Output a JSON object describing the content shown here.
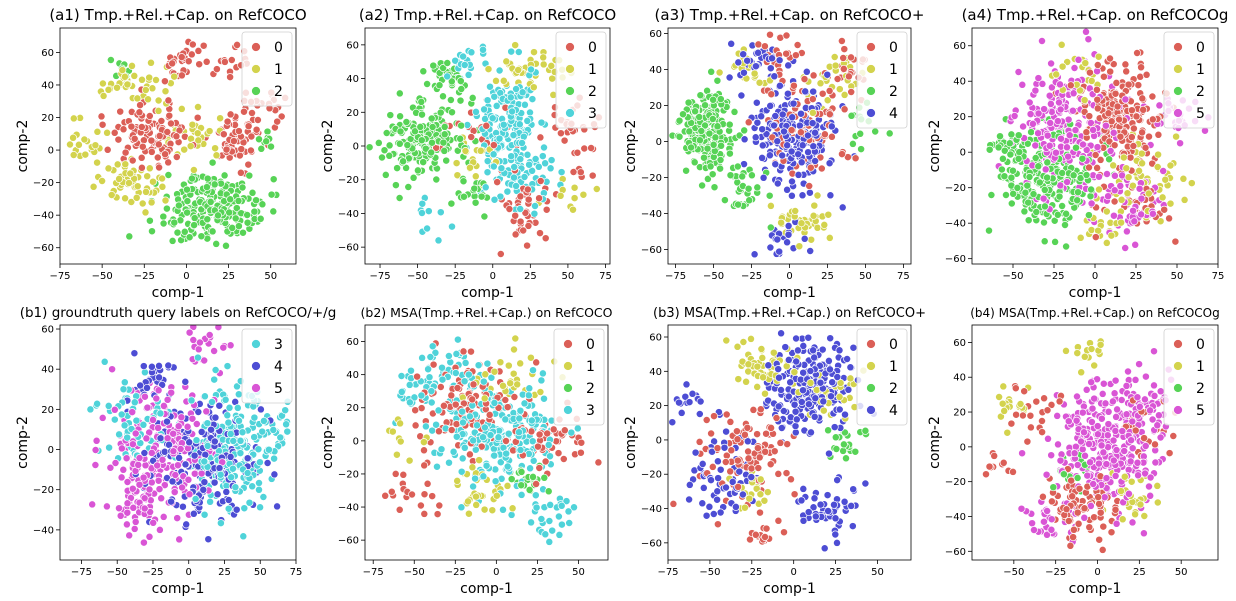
{
  "figure": {
    "panels": 8
  },
  "chart_data": [
    {
      "id": "a1",
      "type": "scatter",
      "title": "(a1) Tmp.+Rel.+Cap. on RefCOCO",
      "xlabel": "comp-1",
      "ylabel": "comp-2",
      "xlim": [
        -75,
        65
      ],
      "ylim": [
        -70,
        75
      ],
      "xticks": [
        -75,
        -50,
        -25,
        0,
        25,
        50
      ],
      "yticks": [
        -60,
        -40,
        -20,
        0,
        20,
        40,
        60
      ],
      "legend_loc": "upper right",
      "series": [
        {
          "name": "0",
          "color": "#db5f57",
          "clusters": [
            [
              -20,
              10,
              16,
              12,
              110
            ],
            [
              30,
              5,
              12,
              10,
              50
            ],
            [
              -5,
              55,
              8,
              10,
              25
            ],
            [
              25,
              55,
              10,
              8,
              20
            ],
            [
              45,
              25,
              12,
              10,
              30
            ]
          ]
        },
        {
          "name": "1",
          "color": "#d3d34d",
          "clusters": [
            [
              -35,
              -20,
              15,
              10,
              55
            ],
            [
              -30,
              40,
              15,
              8,
              40
            ],
            [
              -60,
              5,
              10,
              10,
              20
            ],
            [
              5,
              10,
              10,
              10,
              30
            ]
          ]
        },
        {
          "name": "2",
          "color": "#57d356",
          "clusters": [
            [
              15,
              -35,
              20,
              13,
              230
            ],
            [
              50,
              5,
              5,
              5,
              8
            ],
            [
              -40,
              50,
              5,
              5,
              8
            ]
          ]
        }
      ]
    },
    {
      "id": "a2",
      "type": "scatter",
      "title": "(a2) Tmp.+Rel.+Cap. on RefCOCO",
      "xlabel": "comp-1",
      "ylabel": "comp-2",
      "xlim": [
        -85,
        78
      ],
      "ylim": [
        -70,
        70
      ],
      "xticks": [
        -75,
        -50,
        -25,
        0,
        25,
        50,
        75
      ],
      "yticks": [
        -60,
        -40,
        -20,
        0,
        20,
        40,
        60
      ],
      "legend_loc": "upper right",
      "series": [
        {
          "name": "0",
          "color": "#db5f57",
          "clusters": [
            [
              20,
              -40,
              15,
              15,
              45
            ],
            [
              45,
              10,
              15,
              10,
              25
            ],
            [
              -10,
              10,
              15,
              12,
              20
            ],
            [
              60,
              -10,
              8,
              8,
              10
            ]
          ]
        },
        {
          "name": "1",
          "color": "#d3d34d",
          "clusters": [
            [
              25,
              45,
              15,
              10,
              40
            ],
            [
              -15,
              -10,
              12,
              10,
              20
            ],
            [
              50,
              -30,
              10,
              8,
              10
            ]
          ]
        },
        {
          "name": "2",
          "color": "#57d356",
          "clusters": [
            [
              -45,
              5,
              18,
              15,
              200
            ],
            [
              -30,
              40,
              10,
              10,
              30
            ],
            [
              -15,
              -30,
              10,
              10,
              20
            ]
          ]
        },
        {
          "name": "3",
          "color": "#4fd3d9",
          "clusters": [
            [
              10,
              10,
              15,
              20,
              190
            ],
            [
              -20,
              50,
              10,
              8,
              20
            ],
            [
              20,
              -20,
              15,
              10,
              40
            ],
            [
              -40,
              -40,
              8,
              8,
              10
            ]
          ]
        }
      ]
    },
    {
      "id": "a3",
      "type": "scatter",
      "title": "(a3) Tmp.+Rel.+Cap. on RefCOCO+",
      "xlabel": "comp-1",
      "ylabel": "comp-2",
      "xlim": [
        -80,
        80
      ],
      "ylim": [
        -68,
        63
      ],
      "xticks": [
        -75,
        -50,
        -25,
        0,
        25,
        50,
        75
      ],
      "yticks": [
        -60,
        -40,
        -20,
        0,
        20,
        40,
        60
      ],
      "legend_loc": "upper right",
      "series": [
        {
          "name": "0",
          "color": "#db5f57",
          "clusters": [
            [
              10,
              10,
              20,
              20,
              90
            ],
            [
              -10,
              50,
              10,
              8,
              20
            ],
            [
              40,
              40,
              10,
              10,
              20
            ]
          ]
        },
        {
          "name": "1",
          "color": "#d3d34d",
          "clusters": [
            [
              10,
              -45,
              15,
              8,
              40
            ],
            [
              30,
              35,
              12,
              10,
              30
            ],
            [
              -30,
              40,
              10,
              8,
              20
            ]
          ]
        },
        {
          "name": "2",
          "color": "#57d356",
          "clusters": [
            [
              -55,
              5,
              12,
              15,
              220
            ],
            [
              -30,
              -30,
              10,
              10,
              30
            ],
            [
              50,
              10,
              10,
              10,
              15
            ]
          ]
        },
        {
          "name": "4",
          "color": "#4d4dd4",
          "clusters": [
            [
              5,
              0,
              18,
              20,
              200
            ],
            [
              -20,
              45,
              12,
              8,
              40
            ],
            [
              -5,
              -55,
              8,
              6,
              20
            ]
          ]
        }
      ]
    },
    {
      "id": "a4",
      "type": "scatter",
      "title": "(a4) Tmp.+Rel.+Cap. on RefCOCOg",
      "xlabel": "comp-1",
      "ylabel": "comp-2",
      "xlim": [
        -75,
        75
      ],
      "ylim": [
        -63,
        70
      ],
      "xticks": [
        -50,
        -25,
        0,
        25,
        50,
        75
      ],
      "yticks": [
        -60,
        -40,
        -20,
        0,
        20,
        40,
        60
      ],
      "legend_loc": "upper right",
      "series": [
        {
          "name": "0",
          "color": "#db5f57",
          "clusters": [
            [
              15,
              20,
              18,
              20,
              200
            ],
            [
              30,
              -30,
              15,
              12,
              30
            ]
          ]
        },
        {
          "name": "1",
          "color": "#d3d34d",
          "clusters": [
            [
              35,
              -10,
              15,
              15,
              50
            ],
            [
              -10,
              45,
              10,
              10,
              20
            ],
            [
              5,
              -40,
              10,
              8,
              20
            ]
          ]
        },
        {
          "name": "2",
          "color": "#57d356",
          "clusters": [
            [
              -30,
              -15,
              20,
              18,
              230
            ],
            [
              -55,
              5,
              8,
              8,
              20
            ]
          ]
        },
        {
          "name": "5",
          "color": "#d955d5",
          "clusters": [
            [
              -20,
              15,
              20,
              25,
              230
            ],
            [
              20,
              -30,
              15,
              15,
              60
            ],
            [
              50,
              20,
              12,
              10,
              25
            ]
          ]
        }
      ]
    },
    {
      "id": "b1",
      "type": "scatter",
      "title": "(b1) groundtruth query labels on RefCOCO/+/g",
      "xlabel": "comp-1",
      "ylabel": "comp-2",
      "xlim": [
        -90,
        75
      ],
      "ylim": [
        -55,
        62
      ],
      "xticks": [
        -75,
        -50,
        -25,
        0,
        25,
        50,
        75
      ],
      "yticks": [
        -40,
        -20,
        0,
        20,
        40,
        60
      ],
      "legend_loc": "upper right",
      "series": [
        {
          "name": "3",
          "color": "#4fd3d9",
          "clusters": [
            [
              30,
              0,
              22,
              20,
              230
            ],
            [
              -40,
              10,
              15,
              15,
              60
            ],
            [
              60,
              10,
              8,
              8,
              20
            ]
          ]
        },
        {
          "name": "4",
          "color": "#4d4dd4",
          "clusters": [
            [
              10,
              -5,
              25,
              18,
              220
            ],
            [
              -25,
              35,
              10,
              10,
              30
            ]
          ]
        },
        {
          "name": "5",
          "color": "#d955d5",
          "clusters": [
            [
              -20,
              0,
              25,
              20,
              230
            ],
            [
              -35,
              -30,
              12,
              10,
              40
            ],
            [
              10,
              50,
              10,
              8,
              20
            ]
          ]
        }
      ]
    },
    {
      "id": "b2",
      "type": "scatter",
      "title": "(b2) MSA(Tmp.+Rel.+Cap.) on RefCOCO",
      "xlabel": "comp-1",
      "ylabel": "comp-2",
      "xlim": [
        -80,
        68
      ],
      "ylim": [
        -72,
        70
      ],
      "xticks": [
        -75,
        -50,
        -25,
        0,
        25,
        50
      ],
      "yticks": [
        -60,
        -40,
        -20,
        0,
        20,
        40,
        60
      ],
      "legend_loc": "upper right",
      "series": [
        {
          "name": "0",
          "color": "#db5f57",
          "clusters": [
            [
              -20,
              20,
              20,
              18,
              120
            ],
            [
              30,
              0,
              15,
              15,
              50
            ],
            [
              -50,
              -30,
              10,
              10,
              20
            ]
          ]
        },
        {
          "name": "1",
          "color": "#d3d34d",
          "clusters": [
            [
              10,
              40,
              15,
              10,
              30
            ],
            [
              -10,
              -30,
              12,
              10,
              30
            ],
            [
              -60,
              0,
              8,
              8,
              10
            ]
          ]
        },
        {
          "name": "2",
          "color": "#57d356",
          "clusters": [
            [
              20,
              -25,
              8,
              6,
              25
            ]
          ]
        },
        {
          "name": "3",
          "color": "#4fd3d9",
          "clusters": [
            [
              0,
              5,
              25,
              20,
              260
            ],
            [
              -30,
              45,
              15,
              10,
              40
            ],
            [
              30,
              -45,
              12,
              10,
              30
            ],
            [
              -50,
              30,
              8,
              8,
              20
            ]
          ]
        }
      ]
    },
    {
      "id": "b3",
      "type": "scatter",
      "title": "(b3) MSA(Tmp.+Rel.+Cap.) on RefCOCO+",
      "xlabel": "comp-1",
      "ylabel": "comp-2",
      "xlim": [
        -75,
        70
      ],
      "ylim": [
        -70,
        67
      ],
      "xticks": [
        -75,
        -50,
        -25,
        0,
        25,
        50
      ],
      "yticks": [
        -60,
        -40,
        -20,
        0,
        20,
        40,
        60
      ],
      "legend_loc": "upper right",
      "series": [
        {
          "name": "0",
          "color": "#db5f57",
          "clusters": [
            [
              -30,
              -10,
              20,
              20,
              100
            ],
            [
              -20,
              -55,
              8,
              6,
              15
            ]
          ]
        },
        {
          "name": "1",
          "color": "#d3d34d",
          "clusters": [
            [
              -20,
              45,
              15,
              10,
              50
            ],
            [
              20,
              25,
              12,
              10,
              30
            ],
            [
              -25,
              -30,
              10,
              8,
              20
            ]
          ]
        },
        {
          "name": "2",
          "color": "#57d356",
          "clusters": [
            [
              30,
              0,
              8,
              5,
              20
            ]
          ]
        },
        {
          "name": "4",
          "color": "#4d4dd4",
          "clusters": [
            [
              10,
              30,
              18,
              18,
              230
            ],
            [
              -45,
              -20,
              15,
              15,
              60
            ],
            [
              20,
              -40,
              15,
              12,
              50
            ],
            [
              -60,
              20,
              8,
              8,
              15
            ]
          ]
        }
      ]
    },
    {
      "id": "b4",
      "type": "scatter",
      "title": "(b4) MSA(Tmp.+Rel.+Cap.) on RefCOCOg",
      "xlabel": "comp-1",
      "ylabel": "comp-2",
      "xlim": [
        -75,
        72
      ],
      "ylim": [
        -65,
        70
      ],
      "xticks": [
        -50,
        -25,
        0,
        25,
        50
      ],
      "yticks": [
        -60,
        -40,
        -20,
        0,
        20,
        40,
        60
      ],
      "legend_loc": "upper right",
      "series": [
        {
          "name": "0",
          "color": "#db5f57",
          "clusters": [
            [
              -10,
              -35,
              15,
              12,
              90
            ],
            [
              -40,
              20,
              10,
              10,
              20
            ],
            [
              30,
              10,
              10,
              10,
              20
            ],
            [
              -60,
              -10,
              5,
              5,
              10
            ]
          ]
        },
        {
          "name": "1",
          "color": "#d3d34d",
          "clusters": [
            [
              -50,
              25,
              8,
              8,
              20
            ],
            [
              20,
              -30,
              10,
              10,
              30
            ],
            [
              -5,
              55,
              8,
              8,
              15
            ]
          ]
        },
        {
          "name": "2",
          "color": "#57d356",
          "clusters": [
            [
              -15,
              -15,
              8,
              8,
              15
            ]
          ]
        },
        {
          "name": "5",
          "color": "#d955d5",
          "clusters": [
            [
              5,
              0,
              20,
              25,
              300
            ],
            [
              30,
              25,
              15,
              12,
              50
            ],
            [
              -30,
              -40,
              10,
              8,
              30
            ]
          ]
        }
      ]
    }
  ]
}
